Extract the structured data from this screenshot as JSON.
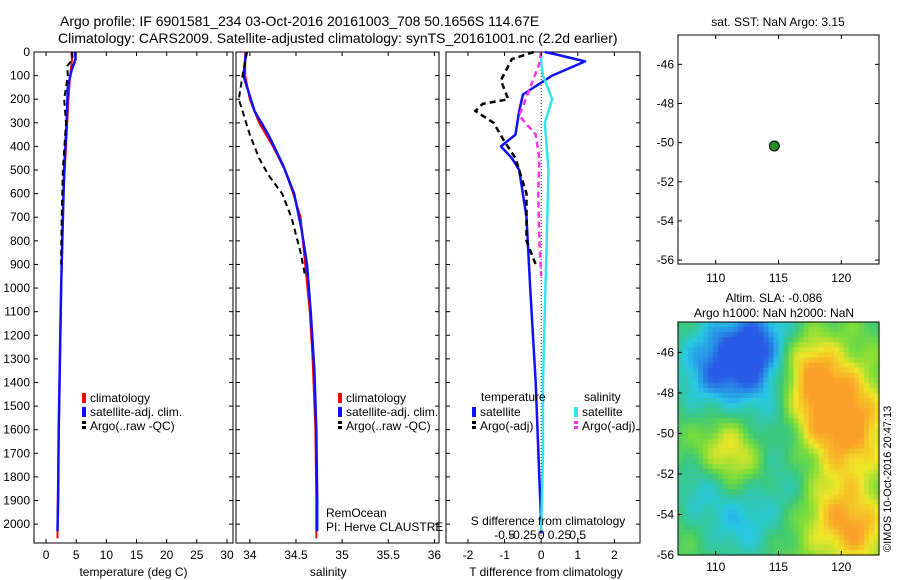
{
  "title_line1": "Argo profile: IF 6901581_234 03-Oct-2016 20161003_708 50.1656S 114.67E",
  "title_line2": "Climatology: CARS2009. Satellite-adjusted climatology: synTS_20161001.nc (2.2d earlier)",
  "credit": "©IMOS 10-Oct-2016 20:47:13",
  "colors": {
    "climatology": "#ff0000",
    "satellite": "#1010ff",
    "argo": "#000000",
    "sal_satellite": "#33e6ee",
    "sal_argo": "#ff33ee"
  },
  "chart_data": [
    {
      "type": "line",
      "name": "temperature",
      "xlabel": "temperature (deg C)",
      "ylabel": "",
      "xlim": [
        -2,
        31
      ],
      "ylim": [
        2080,
        0
      ],
      "xticks": [
        0,
        5,
        10,
        15,
        20,
        25,
        30
      ],
      "yticks": [
        0,
        100,
        200,
        300,
        400,
        500,
        600,
        700,
        800,
        900,
        1000,
        1100,
        1200,
        1300,
        1400,
        1500,
        1600,
        1700,
        1800,
        1900,
        2000
      ],
      "legend": [
        "climatology",
        "satellite-adj. clim.",
        "Argo(..raw -QC)"
      ],
      "series": [
        {
          "name": "climatology",
          "points": [
            [
              4.2,
              0
            ],
            [
              4.3,
              30
            ],
            [
              4.0,
              100
            ],
            [
              3.7,
              200
            ],
            [
              3.3,
              400
            ],
            [
              2.9,
              600
            ],
            [
              2.6,
              900
            ],
            [
              2.4,
              1200
            ],
            [
              2.2,
              1500
            ],
            [
              2.0,
              1800
            ],
            [
              1.9,
              2000
            ],
            [
              1.9,
              2060
            ]
          ]
        },
        {
          "name": "satellite-adj. clim.",
          "points": [
            [
              4.8,
              0
            ],
            [
              4.9,
              30
            ],
            [
              4.2,
              80
            ],
            [
              3.6,
              150
            ],
            [
              3.4,
              300
            ],
            [
              3.0,
              500
            ],
            [
              2.8,
              700
            ],
            [
              2.5,
              1000
            ],
            [
              2.3,
              1300
            ],
            [
              2.1,
              1600
            ],
            [
              2.0,
              1900
            ],
            [
              1.9,
              2030
            ]
          ]
        },
        {
          "name": "Argo(..raw -QC)",
          "points": [
            [
              4.3,
              0
            ],
            [
              4.4,
              30
            ],
            [
              3.5,
              60
            ],
            [
              3.6,
              100
            ],
            [
              3.0,
              200
            ],
            [
              3.3,
              300
            ],
            [
              2.8,
              500
            ],
            [
              2.6,
              700
            ],
            [
              2.5,
              900
            ]
          ]
        }
      ]
    },
    {
      "type": "line",
      "name": "salinity",
      "xlabel": "salinity",
      "ylabel": "",
      "xlim": [
        33.85,
        36.05
      ],
      "ylim": [
        2080,
        0
      ],
      "xticks": [
        34,
        34.5,
        35,
        35.5,
        36
      ],
      "legend": [
        "climatology",
        "satellite-adj. clim.",
        "Argo(..raw -QC)"
      ],
      "annotation": [
        "RemOcean",
        "PI: Herve CLAUSTRE"
      ],
      "series": [
        {
          "name": "climatology",
          "points": [
            [
              33.95,
              0
            ],
            [
              33.95,
              100
            ],
            [
              34.0,
              200
            ],
            [
              34.1,
              300
            ],
            [
              34.25,
              400
            ],
            [
              34.38,
              500
            ],
            [
              34.47,
              600
            ],
            [
              34.55,
              700
            ],
            [
              34.6,
              900
            ],
            [
              34.65,
              1100
            ],
            [
              34.68,
              1300
            ],
            [
              34.71,
              1600
            ],
            [
              34.72,
              1900
            ],
            [
              34.72,
              2060
            ]
          ]
        },
        {
          "name": "satellite-adj. clim.",
          "points": [
            [
              33.96,
              0
            ],
            [
              33.93,
              100
            ],
            [
              33.97,
              150
            ],
            [
              34.05,
              250
            ],
            [
              34.2,
              350
            ],
            [
              34.36,
              480
            ],
            [
              34.48,
              600
            ],
            [
              34.56,
              750
            ],
            [
              34.62,
              900
            ],
            [
              34.66,
              1100
            ],
            [
              34.7,
              1350
            ],
            [
              34.72,
              1600
            ],
            [
              34.73,
              1900
            ],
            [
              34.73,
              2030
            ]
          ]
        },
        {
          "name": "Argo(..raw -QC)",
          "points": [
            [
              33.97,
              0
            ],
            [
              33.92,
              100
            ],
            [
              33.88,
              200
            ],
            [
              34.0,
              350
            ],
            [
              34.1,
              450
            ],
            [
              34.2,
              520
            ],
            [
              34.35,
              600
            ],
            [
              34.45,
              700
            ],
            [
              34.55,
              850
            ],
            [
              34.6,
              950
            ]
          ]
        }
      ]
    },
    {
      "type": "line",
      "name": "difference",
      "xlabel": "T difference from climatology",
      "xlabel_top": "S difference from climatology",
      "xlim": [
        -2.6,
        2.7
      ],
      "ylim": [
        2080,
        0
      ],
      "xticks": [
        -2,
        -1,
        0,
        1,
        2
      ],
      "xticks_top": [
        "-0.5",
        "-0.25",
        "0",
        "0.25",
        "0.5"
      ],
      "legend_headers": [
        "temperature",
        "salinity"
      ],
      "legend": [
        "satellite",
        "Argo(-adj)",
        "satellite",
        "Argo(-adj)"
      ],
      "series": [
        {
          "name": "temperature satellite",
          "points": [
            [
              0.1,
              0
            ],
            [
              0.4,
              10
            ],
            [
              1.2,
              40
            ],
            [
              0.3,
              100
            ],
            [
              -0.5,
              180
            ],
            [
              -0.6,
              250
            ],
            [
              -0.7,
              350
            ],
            [
              -1.1,
              400
            ],
            [
              -0.8,
              450
            ],
            [
              -0.6,
              500
            ],
            [
              -0.4,
              700
            ],
            [
              -0.3,
              1000
            ],
            [
              -0.15,
              1400
            ],
            [
              -0.05,
              1800
            ],
            [
              0,
              2000
            ],
            [
              0,
              2040
            ]
          ]
        },
        {
          "name": "temperature Argo(-adj)",
          "points": [
            [
              -0.2,
              0
            ],
            [
              -0.8,
              30
            ],
            [
              -1.1,
              120
            ],
            [
              -0.9,
              200
            ],
            [
              -1.6,
              220
            ],
            [
              -1.8,
              250
            ],
            [
              -1.3,
              300
            ],
            [
              -1.0,
              380
            ],
            [
              -0.7,
              450
            ],
            [
              -0.4,
              600
            ],
            [
              -0.4,
              800
            ],
            [
              -0.15,
              900
            ]
          ]
        },
        {
          "name": "salinity satellite",
          "points": [
            [
              0,
              0
            ],
            [
              0,
              50
            ],
            [
              0.05,
              100
            ],
            [
              0.3,
              200
            ],
            [
              0.1,
              300
            ],
            [
              0.2,
              500
            ],
            [
              0.15,
              800
            ],
            [
              0.1,
              1100
            ],
            [
              0.05,
              1400
            ],
            [
              0.05,
              1700
            ],
            [
              0.02,
              1900
            ],
            [
              0,
              2030
            ]
          ]
        },
        {
          "name": "salinity Argo(-adj)",
          "points": [
            [
              0,
              0
            ],
            [
              -0.05,
              50
            ],
            [
              -0.3,
              150
            ],
            [
              -0.5,
              230
            ],
            [
              -0.6,
              270
            ],
            [
              -0.15,
              350
            ],
            [
              -0.05,
              450
            ],
            [
              -0.08,
              600
            ],
            [
              -0.05,
              800
            ],
            [
              0,
              950
            ]
          ]
        }
      ]
    },
    {
      "type": "scatter",
      "name": "position map",
      "title": "sat. SST: NaN Argo: 3.15",
      "xlim": [
        107,
        123
      ],
      "ylim": [
        -56.2,
        -44.5
      ],
      "xticks": [
        110,
        115,
        120
      ],
      "yticks": [
        -46,
        -48,
        -50,
        -52,
        -54,
        -56
      ],
      "points": [
        [
          114.67,
          -50.17
        ]
      ]
    },
    {
      "type": "heatmap",
      "name": "sea level anomaly",
      "title_line1": "Altim. SLA: -0.086",
      "title_line2": "Argo h1000: NaN h2000: NaN",
      "xlim": [
        107,
        123
      ],
      "ylim": [
        -56,
        -44.5
      ],
      "xticks": [
        110,
        115,
        120
      ],
      "yticks": [
        -46,
        -48,
        -50,
        -52,
        -54,
        -56
      ]
    }
  ]
}
